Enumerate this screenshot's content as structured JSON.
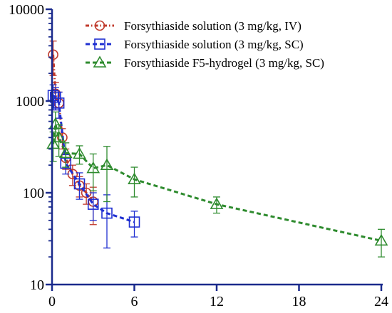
{
  "chart_data": {
    "type": "line",
    "title": "",
    "xlabel": "",
    "ylabel": "",
    "xlim": [
      0,
      24
    ],
    "ylim": [
      10,
      10000
    ],
    "yscale": "log",
    "x_ticks": [
      0,
      6,
      12,
      18,
      24
    ],
    "x_tick_labels": [
      "0",
      "6",
      "12",
      "18",
      "24"
    ],
    "y_ticks": [
      10,
      100,
      1000,
      10000
    ],
    "y_tick_labels": [
      "10",
      "100",
      "1000",
      "10000"
    ],
    "grid": false,
    "legend_position": "top-right",
    "axis_color": "#1a2a8c",
    "series": [
      {
        "name": "Forsythiaside solution (3 mg/kg, IV)",
        "color": "#c0392b",
        "marker": "circle",
        "line_style": "dash-dot",
        "x": [
          0.083,
          0.25,
          0.5,
          0.75,
          1,
          1.5,
          2,
          2.5,
          3
        ],
        "y": [
          3200,
          1200,
          950,
          400,
          240,
          160,
          120,
          100,
          80
        ],
        "y_err": [
          1300,
          400,
          300,
          100,
          60,
          40,
          30,
          25,
          35
        ]
      },
      {
        "name": "Forsythiaside solution (3 mg/kg, SC)",
        "color": "#1f2fd1",
        "marker": "square",
        "line_style": "dashed",
        "x": [
          0.083,
          0.25,
          0.5,
          1,
          2,
          3,
          4,
          6
        ],
        "y": [
          1150,
          1100,
          950,
          210,
          125,
          75,
          60,
          48
        ],
        "y_err": [
          350,
          300,
          300,
          50,
          40,
          25,
          35,
          15
        ]
      },
      {
        "name": "Forsythiaside F5-hydrogel (3 mg/kg, SC)",
        "color": "#2e8b2e",
        "marker": "triangle",
        "line_style": "dashed",
        "x": [
          0.083,
          0.25,
          0.5,
          1,
          2,
          3,
          4,
          6,
          12,
          24
        ],
        "y": [
          340,
          560,
          400,
          270,
          265,
          185,
          200,
          140,
          75,
          30
        ],
        "y_err": [
          120,
          200,
          150,
          80,
          60,
          80,
          120,
          50,
          15,
          10
        ]
      }
    ]
  }
}
